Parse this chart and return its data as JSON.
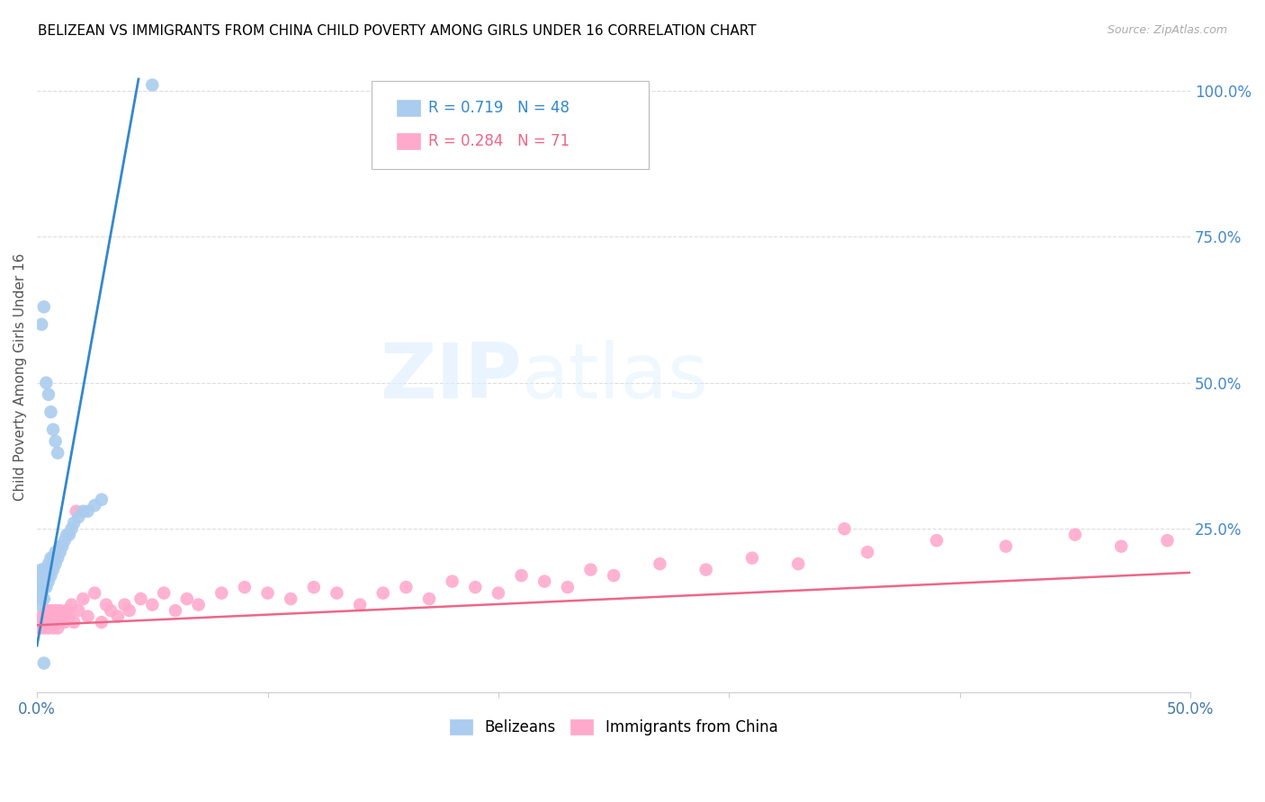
{
  "title": "BELIZEAN VS IMMIGRANTS FROM CHINA CHILD POVERTY AMONG GIRLS UNDER 16 CORRELATION CHART",
  "source": "Source: ZipAtlas.com",
  "ylabel": "Child Poverty Among Girls Under 16",
  "xmin": 0.0,
  "xmax": 0.5,
  "ymin": -0.03,
  "ymax": 1.05,
  "belizean_color": "#aaccee",
  "china_color": "#ffaacc",
  "belizean_line_color": "#3388cc",
  "china_line_color": "#ee6688",
  "legend_belizean_R": "0.719",
  "legend_belizean_N": "48",
  "legend_china_R": "0.284",
  "legend_china_N": "71",
  "bel_x": [
    0.001,
    0.001,
    0.001,
    0.002,
    0.002,
    0.002,
    0.002,
    0.002,
    0.003,
    0.003,
    0.003,
    0.003,
    0.004,
    0.004,
    0.004,
    0.005,
    0.005,
    0.005,
    0.006,
    0.006,
    0.007,
    0.007,
    0.008,
    0.008,
    0.009,
    0.01,
    0.01,
    0.011,
    0.012,
    0.013,
    0.014,
    0.015,
    0.016,
    0.018,
    0.02,
    0.022,
    0.025,
    0.028,
    0.002,
    0.003,
    0.004,
    0.005,
    0.006,
    0.007,
    0.008,
    0.009,
    0.003,
    0.05
  ],
  "bel_y": [
    0.12,
    0.14,
    0.16,
    0.13,
    0.14,
    0.15,
    0.17,
    0.18,
    0.13,
    0.15,
    0.16,
    0.18,
    0.15,
    0.17,
    0.18,
    0.16,
    0.18,
    0.19,
    0.17,
    0.2,
    0.18,
    0.2,
    0.19,
    0.21,
    0.2,
    0.21,
    0.22,
    0.22,
    0.23,
    0.24,
    0.24,
    0.25,
    0.26,
    0.27,
    0.28,
    0.28,
    0.29,
    0.3,
    0.6,
    0.63,
    0.5,
    0.48,
    0.45,
    0.42,
    0.4,
    0.38,
    0.02,
    1.01
  ],
  "chi_x": [
    0.001,
    0.002,
    0.002,
    0.003,
    0.003,
    0.004,
    0.004,
    0.005,
    0.005,
    0.006,
    0.006,
    0.007,
    0.007,
    0.008,
    0.008,
    0.009,
    0.009,
    0.01,
    0.01,
    0.011,
    0.012,
    0.013,
    0.014,
    0.015,
    0.016,
    0.017,
    0.018,
    0.02,
    0.022,
    0.025,
    0.028,
    0.03,
    0.032,
    0.035,
    0.038,
    0.04,
    0.045,
    0.05,
    0.055,
    0.06,
    0.065,
    0.07,
    0.08,
    0.09,
    0.1,
    0.11,
    0.12,
    0.13,
    0.14,
    0.15,
    0.16,
    0.17,
    0.18,
    0.19,
    0.2,
    0.21,
    0.22,
    0.23,
    0.24,
    0.25,
    0.27,
    0.29,
    0.31,
    0.33,
    0.36,
    0.39,
    0.42,
    0.45,
    0.47,
    0.49,
    0.35
  ],
  "chi_y": [
    0.08,
    0.09,
    0.1,
    0.08,
    0.1,
    0.09,
    0.11,
    0.08,
    0.1,
    0.09,
    0.11,
    0.1,
    0.08,
    0.09,
    0.11,
    0.1,
    0.08,
    0.09,
    0.11,
    0.1,
    0.09,
    0.11,
    0.1,
    0.12,
    0.09,
    0.28,
    0.11,
    0.13,
    0.1,
    0.14,
    0.09,
    0.12,
    0.11,
    0.1,
    0.12,
    0.11,
    0.13,
    0.12,
    0.14,
    0.11,
    0.13,
    0.12,
    0.14,
    0.15,
    0.14,
    0.13,
    0.15,
    0.14,
    0.12,
    0.14,
    0.15,
    0.13,
    0.16,
    0.15,
    0.14,
    0.17,
    0.16,
    0.15,
    0.18,
    0.17,
    0.19,
    0.18,
    0.2,
    0.19,
    0.21,
    0.23,
    0.22,
    0.24,
    0.22,
    0.23,
    0.25
  ],
  "bel_line_x": [
    0.0,
    0.044
  ],
  "bel_line_y": [
    0.05,
    1.02
  ],
  "chi_line_x": [
    0.0,
    0.5
  ],
  "chi_line_y": [
    0.085,
    0.175
  ]
}
